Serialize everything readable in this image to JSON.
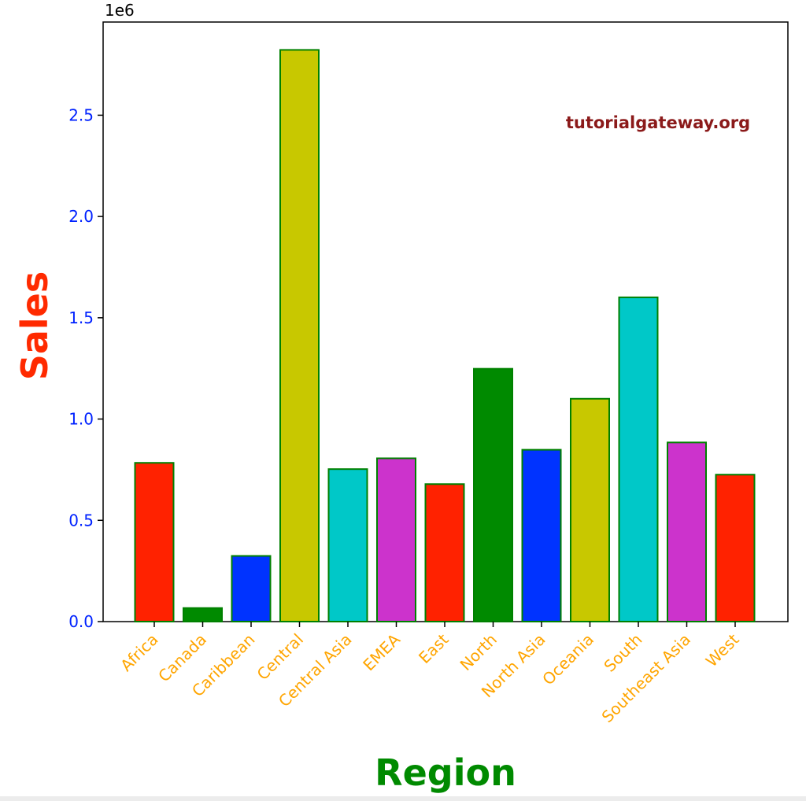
{
  "chart_data": {
    "type": "bar",
    "categories": [
      "Africa",
      "Canada",
      "Caribbean",
      "Central",
      "Central Asia",
      "EMEA",
      "East",
      "North",
      "North Asia",
      "Oceania",
      "South",
      "Southeast Asia",
      "West"
    ],
    "values": [
      783773,
      66929,
      324280,
      2822400,
      752827,
      806161,
      678781,
      1248170,
      848310,
      1100190,
      1600910,
      884423,
      725458
    ],
    "bar_colors": [
      "#ff2200",
      "#008a00",
      "#0033ff",
      "#c8c800",
      "#00c8c8",
      "#cc33cc",
      "#ff2200",
      "#008a00",
      "#0033ff",
      "#c8c800",
      "#00c8c8",
      "#cc33cc",
      "#ff2200"
    ],
    "bar_edge_color": "#008000",
    "xlabel": "Region",
    "ylabel": "Sales",
    "ylim": [
      0,
      2960000
    ],
    "yticks": [
      0,
      500000,
      1000000,
      1500000,
      2000000,
      2500000
    ],
    "ytick_labels": [
      "0.0",
      "0.5",
      "1.0",
      "1.5",
      "2.0",
      "2.5"
    ],
    "y_offset_label": "1e6",
    "grid": false,
    "xlabel_color": "#008a00",
    "ylabel_color": "#ff2a00",
    "xtick_color": "#ffa500",
    "ytick_color": "#0022ff",
    "watermark": "tutorialgateway.org",
    "watermark_color": "#8b1a1a"
  }
}
